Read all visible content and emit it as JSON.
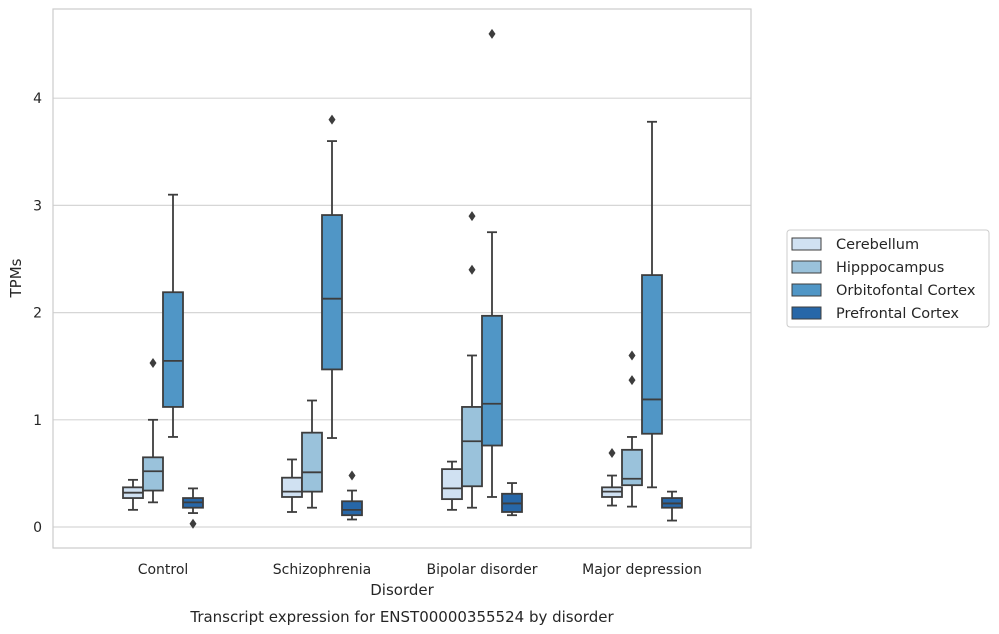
{
  "chart_data": {
    "type": "box",
    "caption": "Transcript expression for ENST00000355524 by disorder",
    "xlabel": "Disorder",
    "ylabel": "TPMs",
    "categories": [
      "Control",
      "Schizophrenia",
      "Bipolar disorder",
      "Major depression"
    ],
    "yticks": [
      "0",
      "1",
      "2",
      "3",
      "4"
    ],
    "ylim": [
      -0.2,
      4.85
    ],
    "grid": "horizontal",
    "legend_position": "right",
    "series": [
      {
        "name": "Cerebellum",
        "color": "#d0e1f2",
        "boxes": [
          {
            "whisker_low": 0.16,
            "q1": 0.27,
            "median": 0.32,
            "q3": 0.37,
            "whisker_high": 0.44,
            "outliers": []
          },
          {
            "whisker_low": 0.14,
            "q1": 0.28,
            "median": 0.33,
            "q3": 0.46,
            "whisker_high": 0.63,
            "outliers": []
          },
          {
            "whisker_low": 0.16,
            "q1": 0.26,
            "median": 0.36,
            "q3": 0.54,
            "whisker_high": 0.61,
            "outliers": []
          },
          {
            "whisker_low": 0.2,
            "q1": 0.28,
            "median": 0.33,
            "q3": 0.37,
            "whisker_high": 0.48,
            "outliers": [
              0.69
            ]
          }
        ]
      },
      {
        "name": "Hipppocampus",
        "color": "#9ac2db",
        "boxes": [
          {
            "whisker_low": 0.23,
            "q1": 0.34,
            "median": 0.52,
            "q3": 0.65,
            "whisker_high": 1.0,
            "outliers": [
              1.53
            ]
          },
          {
            "whisker_low": 0.18,
            "q1": 0.33,
            "median": 0.51,
            "q3": 0.88,
            "whisker_high": 1.18,
            "outliers": []
          },
          {
            "whisker_low": 0.18,
            "q1": 0.38,
            "median": 0.8,
            "q3": 1.12,
            "whisker_high": 1.6,
            "outliers": [
              2.4,
              2.9
            ]
          },
          {
            "whisker_low": 0.19,
            "q1": 0.39,
            "median": 0.45,
            "q3": 0.72,
            "whisker_high": 0.84,
            "outliers": [
              1.37,
              1.6
            ]
          }
        ]
      },
      {
        "name": "Orbitofontal Cortex",
        "color": "#5096c6",
        "boxes": [
          {
            "whisker_low": 0.84,
            "q1": 1.12,
            "median": 1.55,
            "q3": 2.19,
            "whisker_high": 3.1,
            "outliers": []
          },
          {
            "whisker_low": 0.83,
            "q1": 1.47,
            "median": 2.13,
            "q3": 2.91,
            "whisker_high": 3.6,
            "outliers": [
              3.8
            ]
          },
          {
            "whisker_low": 0.28,
            "q1": 0.76,
            "median": 1.15,
            "q3": 1.97,
            "whisker_high": 2.75,
            "outliers": [
              4.6
            ]
          },
          {
            "whisker_low": 0.37,
            "q1": 0.87,
            "median": 1.19,
            "q3": 2.35,
            "whisker_high": 3.78,
            "outliers": []
          }
        ]
      },
      {
        "name": "Prefrontal Cortex",
        "color": "#2767a8",
        "boxes": [
          {
            "whisker_low": 0.13,
            "q1": 0.18,
            "median": 0.23,
            "q3": 0.27,
            "whisker_high": 0.36,
            "outliers": [
              0.03
            ]
          },
          {
            "whisker_low": 0.07,
            "q1": 0.11,
            "median": 0.16,
            "q3": 0.24,
            "whisker_high": 0.34,
            "outliers": [
              0.48
            ]
          },
          {
            "whisker_low": 0.11,
            "q1": 0.14,
            "median": 0.22,
            "q3": 0.31,
            "whisker_high": 0.41,
            "outliers": []
          },
          {
            "whisker_low": 0.06,
            "q1": 0.18,
            "median": 0.22,
            "q3": 0.27,
            "whisker_high": 0.33,
            "outliers": []
          }
        ]
      }
    ]
  }
}
